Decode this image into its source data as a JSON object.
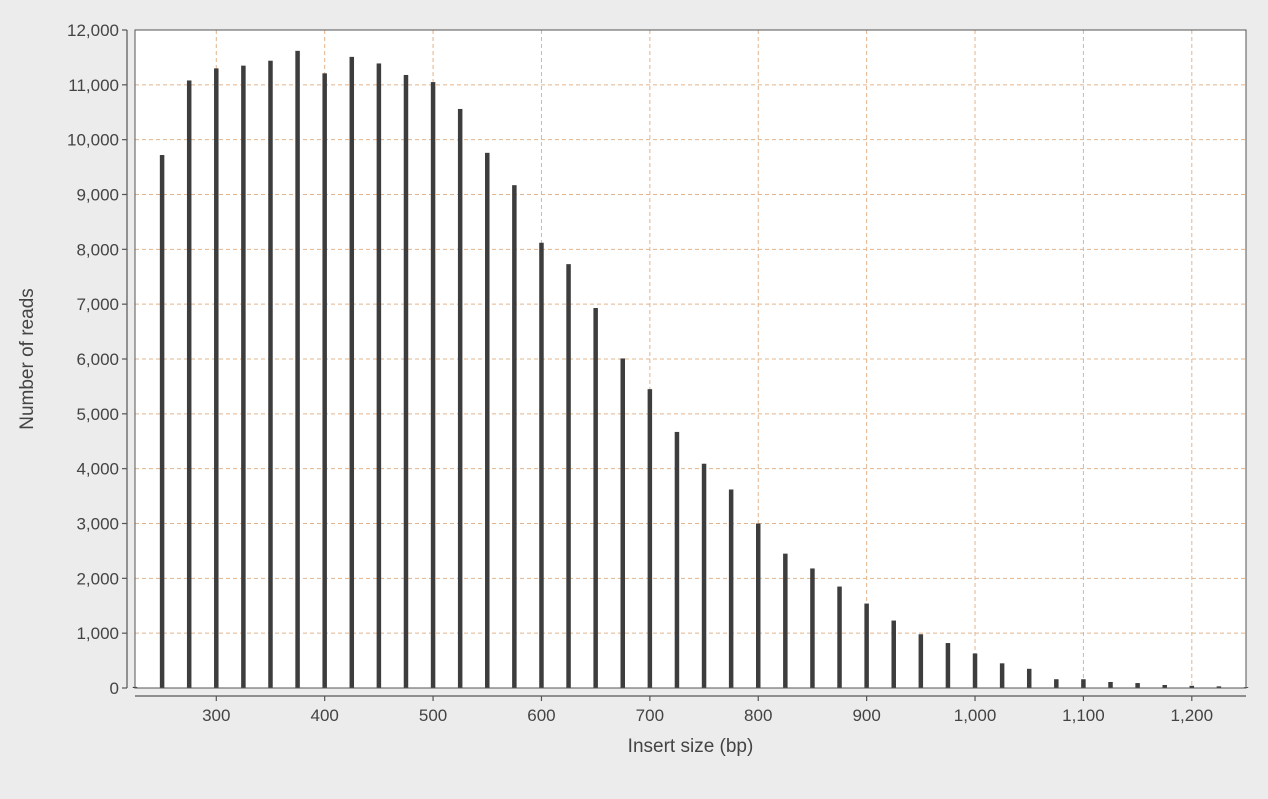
{
  "chart_data": {
    "type": "bar",
    "title": "",
    "xlabel": "Insert size (bp)",
    "ylabel": "Number of reads",
    "xlim": [
      225,
      1250
    ],
    "ylim": [
      0,
      12000
    ],
    "grid": true,
    "legend": "none",
    "colors": {
      "bar": "#3d3d3d",
      "grid": "#e3b48c",
      "plot_background": "#ffffff",
      "page_background": "#ececec",
      "text": "#444444",
      "axis": "#555555"
    },
    "x_ticks": [
      {
        "value": 300,
        "label": "300"
      },
      {
        "value": 400,
        "label": "400"
      },
      {
        "value": 500,
        "label": "500"
      },
      {
        "value": 600,
        "label": "600"
      },
      {
        "value": 700,
        "label": "700"
      },
      {
        "value": 800,
        "label": "800"
      },
      {
        "value": 900,
        "label": "900"
      },
      {
        "value": 1000,
        "label": "1,000"
      },
      {
        "value": 1100,
        "label": "1,100"
      },
      {
        "value": 1200,
        "label": "1,200"
      }
    ],
    "y_ticks": [
      {
        "value": 0,
        "label": "0"
      },
      {
        "value": 1000,
        "label": "1,000"
      },
      {
        "value": 2000,
        "label": "2,000"
      },
      {
        "value": 3000,
        "label": "3,000"
      },
      {
        "value": 4000,
        "label": "4,000"
      },
      {
        "value": 5000,
        "label": "5,000"
      },
      {
        "value": 6000,
        "label": "6,000"
      },
      {
        "value": 7000,
        "label": "7,000"
      },
      {
        "value": 8000,
        "label": "8,000"
      },
      {
        "value": 9000,
        "label": "9,000"
      },
      {
        "value": 10000,
        "label": "10,000"
      },
      {
        "value": 11000,
        "label": "11,000"
      },
      {
        "value": 12000,
        "label": "12,000"
      }
    ],
    "x": [
      225,
      250,
      275,
      300,
      325,
      350,
      375,
      400,
      425,
      450,
      475,
      500,
      525,
      550,
      575,
      600,
      625,
      650,
      675,
      700,
      725,
      750,
      775,
      800,
      825,
      850,
      875,
      900,
      925,
      950,
      975,
      1000,
      1025,
      1050,
      1075,
      1100,
      1125,
      1150,
      1175,
      1200,
      1225,
      1250
    ],
    "values": [
      20,
      9720,
      11080,
      11300,
      11350,
      11440,
      11620,
      11210,
      11510,
      11390,
      11180,
      11050,
      10560,
      9760,
      9170,
      8120,
      7730,
      6930,
      6010,
      5450,
      4670,
      4090,
      3620,
      3000,
      2450,
      2180,
      1850,
      1540,
      1230,
      980,
      820,
      630,
      450,
      350,
      160,
      160,
      110,
      90,
      55,
      40,
      30,
      15
    ]
  }
}
